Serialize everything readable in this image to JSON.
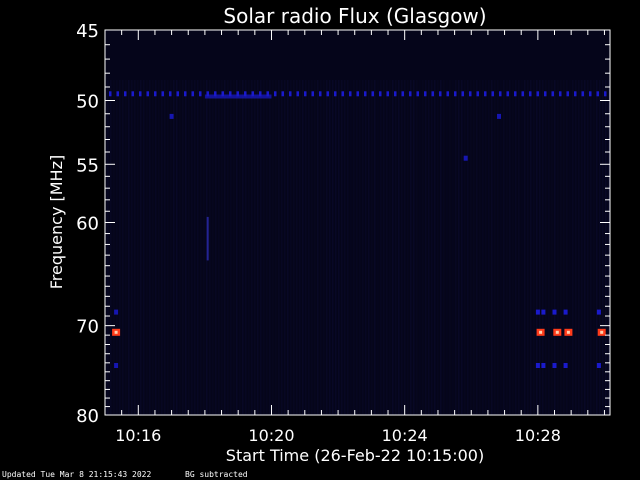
{
  "chart_data": {
    "type": "heatmap",
    "title": "Solar radio Flux (Glasgow)",
    "xlabel": "Start Time (26-Feb-22 10:15:00)",
    "ylabel": "Frequency [MHz]",
    "x_range_minutes": [
      "10:15:00",
      "10:30:10"
    ],
    "y_range_mhz": [
      45,
      80
    ],
    "y_scale": "log",
    "x_ticks": [
      "10:16",
      "10:20",
      "10:24",
      "10:28"
    ],
    "y_ticks": [
      45,
      50,
      55,
      60,
      70,
      80
    ],
    "background_subtraction": true,
    "colors": {
      "background": "#000000",
      "field": "#05051a",
      "band": "#1a1acc",
      "hot": "#ff3b1a",
      "axis": "#ffffff"
    },
    "features": [
      {
        "kind": "horizontal_band",
        "freq_mhz": 49.5,
        "from": "10:15:00",
        "to": "10:30:10",
        "intensity": "low",
        "style": "dashed"
      },
      {
        "kind": "horizontal_band",
        "freq_mhz": 49.7,
        "from": "10:18:00",
        "to": "10:20:00",
        "intensity": "low",
        "style": "solid"
      },
      {
        "kind": "spot",
        "freq_mhz": 51.2,
        "time": "10:17:00",
        "intensity": "low"
      },
      {
        "kind": "spot",
        "freq_mhz": 51.2,
        "time": "10:26:50",
        "intensity": "low"
      },
      {
        "kind": "spot",
        "freq_mhz": 54.5,
        "time": "10:25:50",
        "intensity": "low"
      },
      {
        "kind": "vertical_streak",
        "time": "10:18:05",
        "freq_from_mhz": 59.5,
        "freq_to_mhz": 63.5,
        "intensity": "low"
      },
      {
        "kind": "hot_spot",
        "freq_mhz": 70.7,
        "time": "10:15:20",
        "intensity": "high"
      },
      {
        "kind": "hot_spot",
        "freq_mhz": 70.7,
        "time": "10:28:05",
        "intensity": "high"
      },
      {
        "kind": "hot_spot",
        "freq_mhz": 70.7,
        "time": "10:28:35",
        "intensity": "high"
      },
      {
        "kind": "hot_spot",
        "freq_mhz": 70.7,
        "time": "10:28:55",
        "intensity": "high"
      },
      {
        "kind": "hot_spot",
        "freq_mhz": 70.7,
        "time": "10:29:55",
        "intensity": "high"
      },
      {
        "kind": "spot",
        "freq_mhz": 68.6,
        "time": "10:15:20",
        "intensity": "low"
      },
      {
        "kind": "spot",
        "freq_mhz": 74.3,
        "time": "10:15:20",
        "intensity": "low"
      },
      {
        "kind": "spot_group",
        "freq_mhz": 68.6,
        "times": [
          "10:28:00",
          "10:28:10",
          "10:28:30",
          "10:28:50",
          "10:29:50"
        ],
        "intensity": "low"
      },
      {
        "kind": "spot_group",
        "freq_mhz": 74.3,
        "times": [
          "10:28:00",
          "10:28:10",
          "10:28:30",
          "10:28:50",
          "10:29:50"
        ],
        "intensity": "low"
      }
    ]
  },
  "footer": {
    "updated": "Updated Tue Mar  8 21:15:43 2022",
    "note": "BG subtracted"
  }
}
